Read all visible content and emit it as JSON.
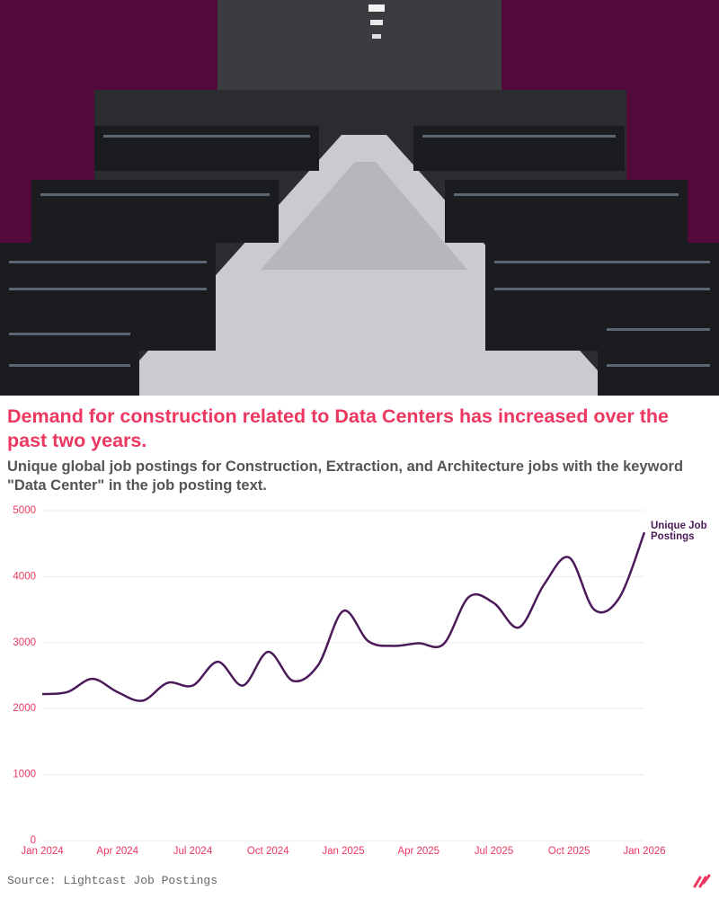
{
  "chart_data": {
    "type": "line",
    "title": "Demand for construction related to Data Centers has increased over the past two years.",
    "subtitle": "Unique global job postings for Construction, Extraction, and Architecture jobs with the keyword \"Data Center\" in the job posting text.",
    "source": "Source: Lightcast Job Postings",
    "categories": [
      "Jan 2024",
      null,
      null,
      "Apr 2024",
      null,
      null,
      "Jul 2024",
      null,
      null,
      "Oct 2024",
      null,
      null,
      "Jan 2025",
      null,
      null,
      "Apr 2025",
      null,
      null,
      "Jul 2025",
      null,
      null,
      "Oct 2025",
      null,
      null,
      "Jan 2026"
    ],
    "series": [
      {
        "name": "Unique Job Postings",
        "color": "#4b1a5a",
        "values": [
          2220,
          2250,
          2450,
          2250,
          2120,
          2390,
          2350,
          2710,
          2350,
          2860,
          2420,
          2660,
          3480,
          3020,
          2950,
          2990,
          2980,
          3690,
          3600,
          3230,
          3880,
          4290,
          3500,
          3680,
          4670
        ]
      }
    ],
    "ylim": [
      0,
      5000
    ],
    "yticks": [
      0,
      1000,
      2000,
      3000,
      4000,
      5000
    ],
    "grid": true
  }
}
